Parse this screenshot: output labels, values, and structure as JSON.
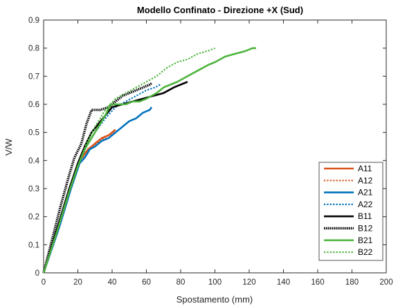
{
  "chart_data": {
    "type": "line",
    "title": "Modello Confinato - Direzione +X (Sud)",
    "xlabel": "Spostamento (mm)",
    "ylabel": "V/W",
    "xlim": [
      0,
      200
    ],
    "ylim": [
      0,
      0.9
    ],
    "xticks": [
      "0",
      "20",
      "40",
      "60",
      "80",
      "100",
      "120",
      "140",
      "160",
      "180",
      "200"
    ],
    "yticks": [
      "0",
      "0.1",
      "0.2",
      "0.3",
      "0.4",
      "0.5",
      "0.6",
      "0.7",
      "0.8",
      "0.9"
    ],
    "grid": false,
    "legend_position": "lower-right",
    "series": [
      {
        "name": "A11",
        "color": "#d95319",
        "style": "solid",
        "points": [
          [
            0,
            0
          ],
          [
            8,
            0.15
          ],
          [
            15,
            0.29
          ],
          [
            21,
            0.4
          ],
          [
            26,
            0.44
          ],
          [
            30,
            0.46
          ],
          [
            34,
            0.48
          ],
          [
            38,
            0.49
          ],
          [
            42,
            0.51
          ]
        ]
      },
      {
        "name": "A12",
        "color": "#d95319",
        "style": "dotted",
        "points": [
          [
            0,
            0
          ],
          [
            8,
            0.15
          ],
          [
            15,
            0.29
          ],
          [
            20,
            0.38
          ],
          [
            24,
            0.42
          ],
          [
            28,
            0.45
          ],
          [
            33,
            0.47
          ],
          [
            38,
            0.49
          ],
          [
            42,
            0.5
          ]
        ]
      },
      {
        "name": "A21",
        "color": "#0072bd",
        "style": "solid",
        "points": [
          [
            0,
            0
          ],
          [
            9,
            0.16
          ],
          [
            16,
            0.3
          ],
          [
            21,
            0.39
          ],
          [
            24,
            0.41
          ],
          [
            27,
            0.44
          ],
          [
            30,
            0.45
          ],
          [
            34,
            0.47
          ],
          [
            38,
            0.48
          ],
          [
            42,
            0.5
          ],
          [
            46,
            0.52
          ],
          [
            50,
            0.54
          ],
          [
            54,
            0.55
          ],
          [
            58,
            0.57
          ],
          [
            62,
            0.58
          ],
          [
            63,
            0.59
          ]
        ]
      },
      {
        "name": "A22",
        "color": "#0072bd",
        "style": "dotted",
        "points": [
          [
            0,
            0
          ],
          [
            8,
            0.15
          ],
          [
            15,
            0.29
          ],
          [
            20,
            0.38
          ],
          [
            25,
            0.45
          ],
          [
            30,
            0.5
          ],
          [
            36,
            0.55
          ],
          [
            42,
            0.59
          ],
          [
            48,
            0.61
          ],
          [
            54,
            0.63
          ],
          [
            60,
            0.65
          ],
          [
            65,
            0.66
          ],
          [
            68,
            0.67
          ]
        ]
      },
      {
        "name": "B11",
        "color": "#000000",
        "style": "solid",
        "points": [
          [
            0,
            0
          ],
          [
            8,
            0.16
          ],
          [
            15,
            0.3
          ],
          [
            20,
            0.39
          ],
          [
            24,
            0.45
          ],
          [
            28,
            0.5
          ],
          [
            32,
            0.53
          ],
          [
            36,
            0.56
          ],
          [
            40,
            0.59
          ],
          [
            46,
            0.6
          ],
          [
            52,
            0.61
          ],
          [
            58,
            0.62
          ],
          [
            64,
            0.63
          ],
          [
            70,
            0.64
          ],
          [
            76,
            0.66
          ],
          [
            80,
            0.67
          ],
          [
            84,
            0.68
          ]
        ]
      },
      {
        "name": "B12",
        "color": "#000000",
        "style": "dense-dotted",
        "points": [
          [
            0,
            0
          ],
          [
            5,
            0.12
          ],
          [
            10,
            0.24
          ],
          [
            15,
            0.35
          ],
          [
            18,
            0.41
          ],
          [
            22,
            0.46
          ],
          [
            25,
            0.53
          ],
          [
            28,
            0.58
          ],
          [
            33,
            0.58
          ],
          [
            38,
            0.59
          ],
          [
            42,
            0.61
          ],
          [
            46,
            0.63
          ],
          [
            50,
            0.64
          ],
          [
            54,
            0.65
          ],
          [
            58,
            0.66
          ],
          [
            62,
            0.67
          ],
          [
            63,
            0.675
          ]
        ]
      },
      {
        "name": "B21",
        "color": "#4db33d",
        "style": "solid",
        "points": [
          [
            0,
            0
          ],
          [
            8,
            0.15
          ],
          [
            15,
            0.29
          ],
          [
            20,
            0.38
          ],
          [
            24,
            0.44
          ],
          [
            28,
            0.48
          ],
          [
            32,
            0.52
          ],
          [
            36,
            0.56
          ],
          [
            39,
            0.6
          ],
          [
            44,
            0.6
          ],
          [
            48,
            0.6
          ],
          [
            52,
            0.61
          ],
          [
            56,
            0.61
          ],
          [
            60,
            0.62
          ],
          [
            66,
            0.64
          ],
          [
            70,
            0.66
          ],
          [
            74,
            0.67
          ],
          [
            78,
            0.68
          ],
          [
            84,
            0.7
          ],
          [
            90,
            0.72
          ],
          [
            96,
            0.74
          ],
          [
            100,
            0.75
          ],
          [
            106,
            0.77
          ],
          [
            112,
            0.78
          ],
          [
            118,
            0.79
          ],
          [
            122,
            0.8
          ],
          [
            124,
            0.8
          ]
        ]
      },
      {
        "name": "B22",
        "color": "#4db33d",
        "style": "dotted",
        "points": [
          [
            0,
            0
          ],
          [
            8,
            0.15
          ],
          [
            15,
            0.29
          ],
          [
            20,
            0.38
          ],
          [
            25,
            0.46
          ],
          [
            30,
            0.52
          ],
          [
            36,
            0.58
          ],
          [
            42,
            0.62
          ],
          [
            48,
            0.64
          ],
          [
            54,
            0.66
          ],
          [
            60,
            0.68
          ],
          [
            66,
            0.7
          ],
          [
            72,
            0.73
          ],
          [
            78,
            0.75
          ],
          [
            84,
            0.76
          ],
          [
            90,
            0.78
          ],
          [
            96,
            0.79
          ],
          [
            100,
            0.8
          ]
        ]
      }
    ]
  }
}
